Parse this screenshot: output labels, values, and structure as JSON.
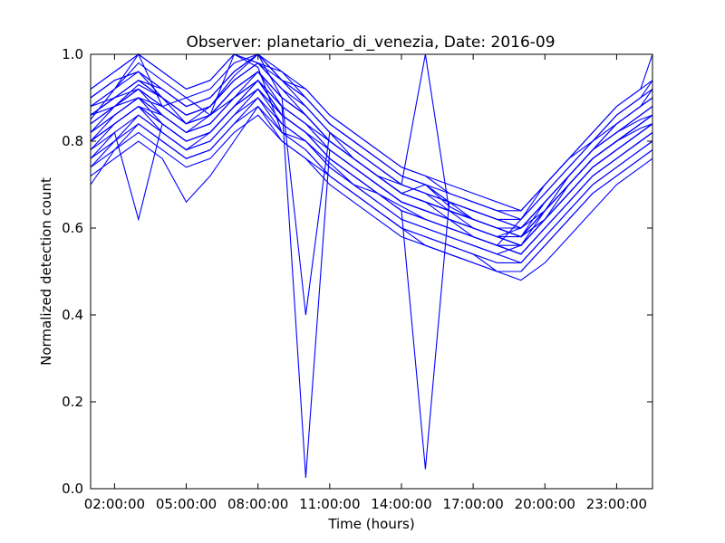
{
  "chart_data": {
    "type": "line",
    "title": "Observer: planetario_di_venezia, Date: 2016-09",
    "xlabel": "Time (hours)",
    "ylabel": "Normalized detection count",
    "xlim": [
      1.0,
      24.5
    ],
    "ylim": [
      0.0,
      1.0
    ],
    "grid": false,
    "legend": "none",
    "line_color": "#0000ff",
    "x_ticks": [
      {
        "value": 2,
        "label": "02:00:00"
      },
      {
        "value": 5,
        "label": "05:00:00"
      },
      {
        "value": 8,
        "label": "08:00:00"
      },
      {
        "value": 11,
        "label": "11:00:00"
      },
      {
        "value": 14,
        "label": "14:00:00"
      },
      {
        "value": 17,
        "label": "17:00:00"
      },
      {
        "value": 20,
        "label": "20:00:00"
      },
      {
        "value": 23,
        "label": "23:00:00"
      }
    ],
    "y_ticks": [
      {
        "value": 0.0,
        "label": "0.0"
      },
      {
        "value": 0.2,
        "label": "0.2"
      },
      {
        "value": 0.4,
        "label": "0.4"
      },
      {
        "value": 0.6,
        "label": "0.6"
      },
      {
        "value": 0.8,
        "label": "0.8"
      },
      {
        "value": 1.0,
        "label": "1.0"
      }
    ],
    "x": [
      1,
      2,
      3,
      4,
      5,
      6,
      7,
      8,
      9,
      10,
      11,
      12,
      13,
      14,
      15,
      16,
      17,
      18,
      19,
      20,
      21,
      22,
      23,
      24,
      24.5
    ],
    "series": [
      {
        "values": [
          0.85,
          0.92,
          1.0,
          0.88,
          0.9,
          0.86,
          1.0,
          0.97,
          0.82,
          0.8,
          0.75,
          0.7,
          0.68,
          0.65,
          0.62,
          0.6,
          0.58,
          0.56,
          0.62,
          0.7,
          0.76,
          0.8,
          0.84,
          0.88,
          0.9
        ]
      },
      {
        "values": [
          0.82,
          0.88,
          0.93,
          0.9,
          0.84,
          0.88,
          0.95,
          1.0,
          0.9,
          0.4,
          0.82,
          0.76,
          0.72,
          0.68,
          0.7,
          0.65,
          0.62,
          0.6,
          0.58,
          0.66,
          0.72,
          0.78,
          0.82,
          0.85,
          0.86
        ]
      },
      {
        "values": [
          0.78,
          0.84,
          0.88,
          0.86,
          0.82,
          0.84,
          0.9,
          0.96,
          0.88,
          0.025,
          0.78,
          0.74,
          0.7,
          0.66,
          0.64,
          0.62,
          0.6,
          0.58,
          0.56,
          0.64,
          0.7,
          0.76,
          0.8,
          0.83,
          0.84
        ]
      },
      {
        "values": [
          0.8,
          0.86,
          0.9,
          0.84,
          0.8,
          0.82,
          0.88,
          0.94,
          0.86,
          0.82,
          0.76,
          0.72,
          0.68,
          0.64,
          0.045,
          0.66,
          0.62,
          0.6,
          0.58,
          0.62,
          0.68,
          0.74,
          0.78,
          0.82,
          0.84
        ]
      },
      {
        "values": [
          0.86,
          0.9,
          0.94,
          0.92,
          0.88,
          0.9,
          0.96,
          1.0,
          0.94,
          0.88,
          0.82,
          0.78,
          0.74,
          0.7,
          1.0,
          0.64,
          0.6,
          0.58,
          0.56,
          0.62,
          0.7,
          0.76,
          0.8,
          0.84,
          0.86
        ]
      },
      {
        "values": [
          0.74,
          0.8,
          0.86,
          0.82,
          0.78,
          0.8,
          0.86,
          0.92,
          0.84,
          0.8,
          0.74,
          0.7,
          0.66,
          0.62,
          0.6,
          0.58,
          0.56,
          0.54,
          0.52,
          0.58,
          0.64,
          0.7,
          0.74,
          0.78,
          0.8
        ]
      },
      {
        "values": [
          0.9,
          0.94,
          0.96,
          0.9,
          0.86,
          0.88,
          0.94,
          0.98,
          0.92,
          0.86,
          0.8,
          0.76,
          0.72,
          0.68,
          0.66,
          0.62,
          0.6,
          0.58,
          0.6,
          0.66,
          0.72,
          0.78,
          0.84,
          0.88,
          0.92
        ]
      },
      {
        "values": [
          0.7,
          0.78,
          0.84,
          0.8,
          0.76,
          0.78,
          0.84,
          0.9,
          0.82,
          0.78,
          0.72,
          0.68,
          0.64,
          0.6,
          0.58,
          0.56,
          0.54,
          0.5,
          0.5,
          0.56,
          0.62,
          0.68,
          0.72,
          0.76,
          0.78
        ]
      },
      {
        "values": [
          0.88,
          0.92,
          0.98,
          0.94,
          0.9,
          0.92,
          0.98,
          1.0,
          0.96,
          0.9,
          0.84,
          0.8,
          0.76,
          0.72,
          0.7,
          0.66,
          0.64,
          0.62,
          0.62,
          0.68,
          0.74,
          0.8,
          0.86,
          0.9,
          0.94
        ]
      },
      {
        "values": [
          0.76,
          0.82,
          0.62,
          0.84,
          0.8,
          0.82,
          0.88,
          0.94,
          0.86,
          0.82,
          0.76,
          0.72,
          0.68,
          0.64,
          0.62,
          0.6,
          0.58,
          0.56,
          0.54,
          0.6,
          0.66,
          0.72,
          0.76,
          0.8,
          0.82
        ]
      },
      {
        "values": [
          0.92,
          0.96,
          1.0,
          0.96,
          0.92,
          0.94,
          1.0,
          0.98,
          0.94,
          0.92,
          0.86,
          0.82,
          0.78,
          0.74,
          0.72,
          0.68,
          0.66,
          0.64,
          0.64,
          0.7,
          0.76,
          0.82,
          0.88,
          0.92,
          1.0
        ]
      },
      {
        "values": [
          0.84,
          0.88,
          0.92,
          0.86,
          0.82,
          0.86,
          0.92,
          0.96,
          0.9,
          0.86,
          0.8,
          0.76,
          0.72,
          0.68,
          0.66,
          0.64,
          0.62,
          0.6,
          0.58,
          0.64,
          0.7,
          0.76,
          0.8,
          0.84,
          0.86
        ]
      },
      {
        "values": [
          0.8,
          0.84,
          0.88,
          0.82,
          0.78,
          0.82,
          0.88,
          0.92,
          0.86,
          0.82,
          0.78,
          0.74,
          0.7,
          0.66,
          0.64,
          0.62,
          0.58,
          0.56,
          0.54,
          0.6,
          0.66,
          0.72,
          0.76,
          0.8,
          0.82
        ]
      },
      {
        "values": [
          0.86,
          0.9,
          0.94,
          0.9,
          0.86,
          0.88,
          0.94,
          0.98,
          0.92,
          0.88,
          0.82,
          0.78,
          0.74,
          0.7,
          0.68,
          0.64,
          0.62,
          0.6,
          0.58,
          0.64,
          0.72,
          0.78,
          0.82,
          0.86,
          0.88
        ]
      },
      {
        "values": [
          0.72,
          0.76,
          0.8,
          0.76,
          0.66,
          0.72,
          0.8,
          0.88,
          0.8,
          0.76,
          0.72,
          0.68,
          0.64,
          0.6,
          0.56,
          0.54,
          0.52,
          0.5,
          0.48,
          0.52,
          0.58,
          0.64,
          0.7,
          0.74,
          0.76
        ]
      },
      {
        "values": [
          0.84,
          0.88,
          0.9,
          0.88,
          0.84,
          0.86,
          0.9,
          0.94,
          0.88,
          0.84,
          0.8,
          0.76,
          0.72,
          0.7,
          0.68,
          0.66,
          0.64,
          0.62,
          0.6,
          0.66,
          0.72,
          0.78,
          0.82,
          0.86,
          0.88
        ]
      },
      {
        "values": [
          0.88,
          0.92,
          0.96,
          0.92,
          0.88,
          0.9,
          0.96,
          1.0,
          0.94,
          0.9,
          0.84,
          0.8,
          0.76,
          0.72,
          0.7,
          0.66,
          0.64,
          0.62,
          0.6,
          0.66,
          0.72,
          0.78,
          0.84,
          0.88,
          0.9
        ]
      },
      {
        "values": [
          0.78,
          0.82,
          0.86,
          0.82,
          0.78,
          0.8,
          0.86,
          0.9,
          0.84,
          0.8,
          0.74,
          0.7,
          0.66,
          0.62,
          0.6,
          0.58,
          0.56,
          0.54,
          0.56,
          0.62,
          0.68,
          0.74,
          0.78,
          0.82,
          0.84
        ]
      },
      {
        "values": [
          0.82,
          0.86,
          0.9,
          0.86,
          0.82,
          0.84,
          0.9,
          0.94,
          0.88,
          0.84,
          0.78,
          0.74,
          0.7,
          0.66,
          0.64,
          0.62,
          0.6,
          0.58,
          0.58,
          0.64,
          0.7,
          0.76,
          0.8,
          0.84,
          0.86
        ]
      },
      {
        "values": [
          0.86,
          0.88,
          0.92,
          0.88,
          0.84,
          0.86,
          0.92,
          0.96,
          0.9,
          0.86,
          0.8,
          0.76,
          0.72,
          0.68,
          0.66,
          0.64,
          0.62,
          0.6,
          0.58,
          0.62,
          0.68,
          0.74,
          0.78,
          0.82,
          0.84
        ]
      },
      {
        "values": [
          0.8,
          0.84,
          0.88,
          0.84,
          0.8,
          0.82,
          0.88,
          0.92,
          0.86,
          0.82,
          0.76,
          0.72,
          0.68,
          0.64,
          0.62,
          0.6,
          0.58,
          0.56,
          0.54,
          0.6,
          0.66,
          0.72,
          0.76,
          0.8,
          0.82
        ]
      },
      {
        "values": [
          0.9,
          0.94,
          0.96,
          0.92,
          0.88,
          0.9,
          0.96,
          1.0,
          0.94,
          0.9,
          0.84,
          0.8,
          0.76,
          0.72,
          0.7,
          0.68,
          0.66,
          0.64,
          0.62,
          0.68,
          0.74,
          0.8,
          0.86,
          0.9,
          0.92
        ]
      },
      {
        "values": [
          0.76,
          0.8,
          0.84,
          0.8,
          0.76,
          0.78,
          0.84,
          0.88,
          0.82,
          0.78,
          0.72,
          0.68,
          0.64,
          0.6,
          0.58,
          0.56,
          0.54,
          0.52,
          0.52,
          0.58,
          0.64,
          0.7,
          0.74,
          0.78,
          0.8
        ]
      },
      {
        "values": [
          0.84,
          0.88,
          0.92,
          0.88,
          0.84,
          0.86,
          0.92,
          0.96,
          0.9,
          0.86,
          0.8,
          0.76,
          0.72,
          0.68,
          0.66,
          0.64,
          0.62,
          0.6,
          0.6,
          0.66,
          0.72,
          0.78,
          0.82,
          0.86,
          0.88
        ]
      },
      {
        "values": [
          0.88,
          0.9,
          0.94,
          0.9,
          0.86,
          0.88,
          0.94,
          0.98,
          0.92,
          0.88,
          0.82,
          0.78,
          0.74,
          0.7,
          0.68,
          0.66,
          0.64,
          0.62,
          0.6,
          0.64,
          0.7,
          0.76,
          0.8,
          0.84,
          0.86
        ]
      },
      {
        "values": [
          0.82,
          0.86,
          0.9,
          0.86,
          0.82,
          0.84,
          0.9,
          0.94,
          0.88,
          0.84,
          0.78,
          0.74,
          0.7,
          0.66,
          0.64,
          0.62,
          0.6,
          0.58,
          0.56,
          0.62,
          0.68,
          0.74,
          0.78,
          0.82,
          0.84
        ]
      },
      {
        "values": [
          0.74,
          0.78,
          0.82,
          0.78,
          0.74,
          0.76,
          0.82,
          0.86,
          0.8,
          0.76,
          0.7,
          0.66,
          0.62,
          0.58,
          0.56,
          0.54,
          0.52,
          0.5,
          0.5,
          0.56,
          0.62,
          0.68,
          0.72,
          0.76,
          0.78
        ]
      },
      {
        "values": [
          0.92,
          0.96,
          1.0,
          0.96,
          0.92,
          0.94,
          1.0,
          0.98,
          0.96,
          0.92,
          0.86,
          0.82,
          0.78,
          0.74,
          0.72,
          0.7,
          0.68,
          0.66,
          0.64,
          0.7,
          0.76,
          0.82,
          0.88,
          0.92,
          0.94
        ]
      },
      {
        "values": [
          0.8,
          0.84,
          0.88,
          0.84,
          0.8,
          0.82,
          0.88,
          0.92,
          0.86,
          0.82,
          0.76,
          0.72,
          0.68,
          0.64,
          0.62,
          0.6,
          0.58,
          0.56,
          0.56,
          0.62,
          0.68,
          0.74,
          0.78,
          0.82,
          0.84
        ]
      },
      {
        "values": [
          0.86,
          0.9,
          0.92,
          0.88,
          0.84,
          0.86,
          0.92,
          0.96,
          0.9,
          0.86,
          0.8,
          0.76,
          0.72,
          0.68,
          0.66,
          0.64,
          0.62,
          0.6,
          0.58,
          0.64,
          0.7,
          0.76,
          0.8,
          0.84,
          0.86
        ]
      }
    ]
  }
}
